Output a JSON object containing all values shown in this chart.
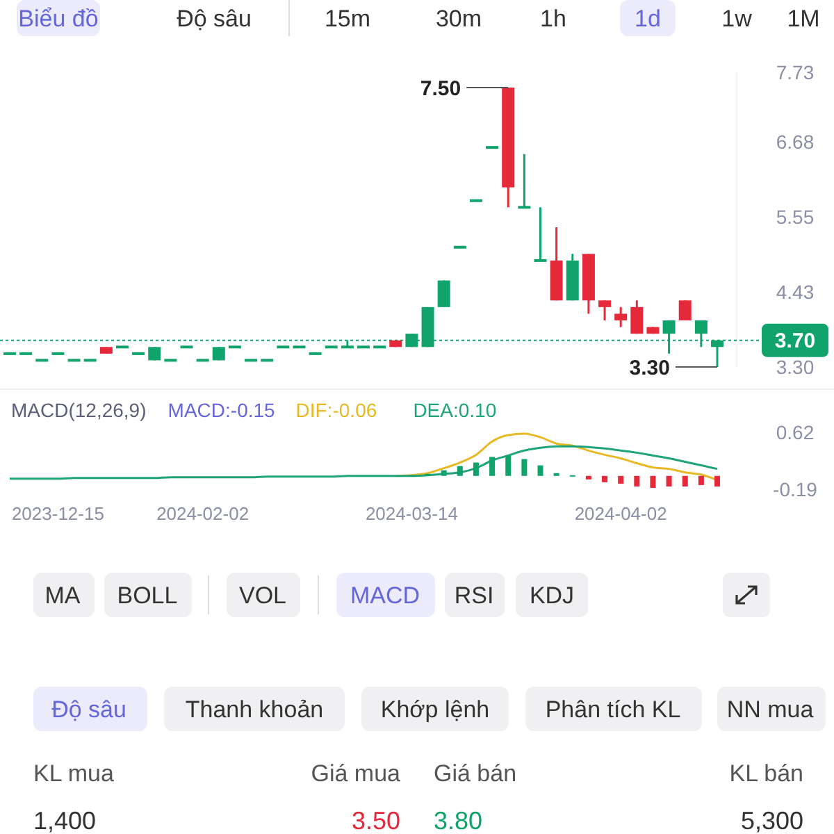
{
  "chart_data": [
    {
      "type": "candlestick",
      "categories": [
        null,
        null,
        null,
        null,
        null,
        null,
        null,
        null,
        null,
        null,
        null,
        null,
        null,
        null,
        null,
        null,
        null,
        null,
        null,
        null,
        null,
        null,
        null,
        null,
        null,
        null,
        null,
        null,
        null,
        null,
        null,
        null,
        null,
        null,
        null,
        null,
        null,
        null,
        null,
        null,
        null,
        null,
        null,
        null,
        null
      ],
      "ohlc": [
        [
          3.5,
          3.5,
          3.5,
          3.5
        ],
        [
          3.5,
          3.5,
          3.5,
          3.5
        ],
        [
          3.4,
          3.4,
          3.4,
          3.4
        ],
        [
          3.5,
          3.5,
          3.5,
          3.5
        ],
        [
          3.4,
          3.4,
          3.4,
          3.4
        ],
        [
          3.4,
          3.4,
          3.4,
          3.4
        ],
        [
          3.6,
          3.6,
          3.5,
          3.5
        ],
        [
          3.6,
          3.6,
          3.6,
          3.6
        ],
        [
          3.5,
          3.5,
          3.5,
          3.5
        ],
        [
          3.4,
          3.6,
          3.4,
          3.6
        ],
        [
          3.4,
          3.4,
          3.4,
          3.4
        ],
        [
          3.6,
          3.6,
          3.6,
          3.6
        ],
        [
          3.4,
          3.4,
          3.4,
          3.4
        ],
        [
          3.4,
          3.6,
          3.4,
          3.6
        ],
        [
          3.6,
          3.6,
          3.6,
          3.6
        ],
        [
          3.4,
          3.4,
          3.4,
          3.4
        ],
        [
          3.4,
          3.4,
          3.4,
          3.4
        ],
        [
          3.6,
          3.6,
          3.6,
          3.6
        ],
        [
          3.6,
          3.6,
          3.6,
          3.6
        ],
        [
          3.5,
          3.5,
          3.5,
          3.5
        ],
        [
          3.6,
          3.6,
          3.6,
          3.6
        ],
        [
          3.6,
          3.7,
          3.6,
          3.6
        ],
        [
          3.6,
          3.6,
          3.6,
          3.6
        ],
        [
          3.6,
          3.6,
          3.6,
          3.6
        ],
        [
          3.7,
          3.7,
          3.6,
          3.6
        ],
        [
          3.6,
          3.8,
          3.6,
          3.8
        ],
        [
          3.6,
          4.2,
          3.6,
          4.2
        ],
        [
          4.2,
          4.6,
          4.2,
          4.6
        ],
        [
          5.1,
          5.1,
          5.1,
          5.1
        ],
        [
          5.8,
          5.8,
          5.8,
          5.8
        ],
        [
          6.6,
          6.6,
          6.6,
          6.6
        ],
        [
          7.5,
          7.5,
          5.7,
          6.0
        ],
        [
          5.7,
          6.5,
          5.7,
          5.7
        ],
        [
          4.9,
          5.7,
          4.9,
          4.9
        ],
        [
          4.9,
          5.4,
          4.3,
          4.3
        ],
        [
          4.3,
          5.0,
          4.3,
          4.9
        ],
        [
          5.0,
          5.0,
          4.1,
          4.3
        ],
        [
          4.3,
          4.3,
          4.0,
          4.2
        ],
        [
          4.1,
          4.2,
          3.9,
          4.0
        ],
        [
          4.2,
          4.3,
          3.8,
          3.8
        ],
        [
          3.9,
          3.9,
          3.8,
          3.8
        ],
        [
          3.8,
          4.0,
          3.5,
          4.0
        ],
        [
          4.3,
          4.3,
          4.0,
          4.0
        ],
        [
          3.8,
          4.0,
          3.6,
          4.0
        ],
        [
          3.6,
          3.7,
          3.3,
          3.7
        ]
      ],
      "colors": [
        "#10a36b",
        "#10a36b",
        "#10a36b",
        "#10a36b",
        "#10a36b",
        "#10a36b",
        "#e5283a",
        "#10a36b",
        "#10a36b",
        "#10a36b",
        "#10a36b",
        "#10a36b",
        "#10a36b",
        "#10a36b",
        "#10a36b",
        "#10a36b",
        "#10a36b",
        "#10a36b",
        "#10a36b",
        "#10a36b",
        "#10a36b",
        "#10a36b",
        "#10a36b",
        "#10a36b",
        "#e5283a",
        "#10a36b",
        "#10a36b",
        "#10a36b",
        "#10a36b",
        "#10a36b",
        "#10a36b",
        "#e5283a",
        "#10a36b",
        "#10a36b",
        "#e5283a",
        "#10a36b",
        "#e5283a",
        "#e5283a",
        "#e5283a",
        "#e5283a",
        "#e5283a",
        "#10a36b",
        "#e5283a",
        "#10a36b",
        "#10a36b"
      ],
      "ylim": [
        3.3,
        7.73
      ],
      "yticks": [
        {
          "value": 3.3,
          "label": "3.30"
        },
        4.43,
        5.55,
        6.68,
        7.73
      ],
      "tick_labels": "y",
      "ref_lines": [
        {
          "axis": "y",
          "value": 3.7,
          "label": "3.70",
          "color": "#10a36b",
          "line_style": "dotted"
        }
      ],
      "annotations": [
        "7.50",
        "3.30"
      ]
    },
    {
      "type": "line",
      "title": "MACD(12,26,9)",
      "categories": [
        null,
        null,
        null,
        "2023-12-15",
        null,
        null,
        null,
        null,
        null,
        null,
        null,
        null,
        "2024-02-02",
        null,
        null,
        null,
        null,
        null,
        null,
        null,
        null,
        null,
        null,
        null,
        null,
        "2024-03-14",
        null,
        null,
        null,
        null,
        null,
        null,
        null,
        null,
        null,
        null,
        null,
        null,
        "2024-04-02",
        null,
        null,
        null,
        null,
        null,
        null
      ],
      "ylim": [
        -0.19,
        0.62
      ],
      "yticks": [
        0.62,
        -0.19
      ],
      "annotations": [
        "MACD:-0.15"
      ],
      "series": [
        {
          "type": "bar",
          "values": [
            null,
            null,
            null,
            null,
            null,
            null,
            null,
            null,
            null,
            null,
            null,
            null,
            null,
            null,
            null,
            null,
            null,
            null,
            null,
            null,
            null,
            null,
            null,
            null,
            null,
            0.01,
            0.03,
            0.08,
            0.14,
            0.19,
            0.27,
            0.29,
            0.24,
            0.15,
            0.04,
            0.01,
            -0.05,
            -0.09,
            -0.11,
            -0.15,
            -0.17,
            -0.15,
            -0.15,
            -0.13,
            -0.15
          ],
          "colors": [
            null,
            null,
            null,
            null,
            null,
            null,
            null,
            null,
            null,
            null,
            null,
            null,
            null,
            null,
            null,
            null,
            null,
            null,
            null,
            null,
            null,
            null,
            null,
            null,
            null,
            "#10a36b",
            "#10a36b",
            "#10a36b",
            "#10a36b",
            "#10a36b",
            "#10a36b",
            "#10a36b",
            "#10a36b",
            "#10a36b",
            "#10a36b",
            "#10a36b",
            "#e5283a",
            "#e5283a",
            "#e5283a",
            "#e5283a",
            "#e5283a",
            "#e5283a",
            "#e5283a",
            "#e5283a",
            "#e5283a"
          ]
        },
        {
          "name": "DIF:-0.06",
          "color": "#e8b825",
          "values": [
            null,
            null,
            null,
            null,
            null,
            null,
            null,
            null,
            null,
            null,
            null,
            null,
            null,
            null,
            null,
            null,
            null,
            null,
            null,
            null,
            null,
            null,
            null,
            null,
            0,
            0.01,
            0.04,
            0.11,
            0.19,
            0.3,
            0.49,
            0.58,
            0.6,
            0.55,
            0.46,
            0.43,
            0.36,
            0.3,
            0.25,
            0.18,
            0.12,
            0.1,
            0.05,
            0.02,
            -0.06
          ]
        },
        {
          "name": "DEA:0.10",
          "color": "#1fa37a",
          "values": [
            -0.04,
            -0.04,
            -0.04,
            -0.04,
            -0.03,
            -0.03,
            -0.03,
            -0.03,
            -0.03,
            -0.03,
            -0.02,
            -0.02,
            -0.02,
            -0.02,
            -0.02,
            -0.02,
            -0.01,
            -0.01,
            -0.01,
            -0.01,
            -0.01,
            0,
            0,
            0,
            0,
            0,
            0.01,
            0.03,
            0.05,
            0.11,
            0.22,
            0.29,
            0.36,
            0.4,
            0.42,
            0.42,
            0.41,
            0.39,
            0.36,
            0.33,
            0.29,
            0.25,
            0.2,
            0.15,
            0.1
          ]
        }
      ]
    },
    {
      "type": "other",
      "annotations": [
        "Biểu đồ",
        "Độ sâu",
        "15m",
        "30m",
        "1h",
        "1d",
        "1w",
        "1M",
        "MA",
        "BOLL",
        "VOL",
        "MACD",
        "RSI",
        "KDJ",
        "Độ sâu",
        "Thanh khoản",
        "Khớp lệnh",
        "Phân tích KL",
        "NN mua",
        "KL mua",
        "Giá mua",
        "Giá bán",
        "KL bán",
        "1,400",
        "3.50",
        "3.80",
        "5,300"
      ]
    }
  ]
}
